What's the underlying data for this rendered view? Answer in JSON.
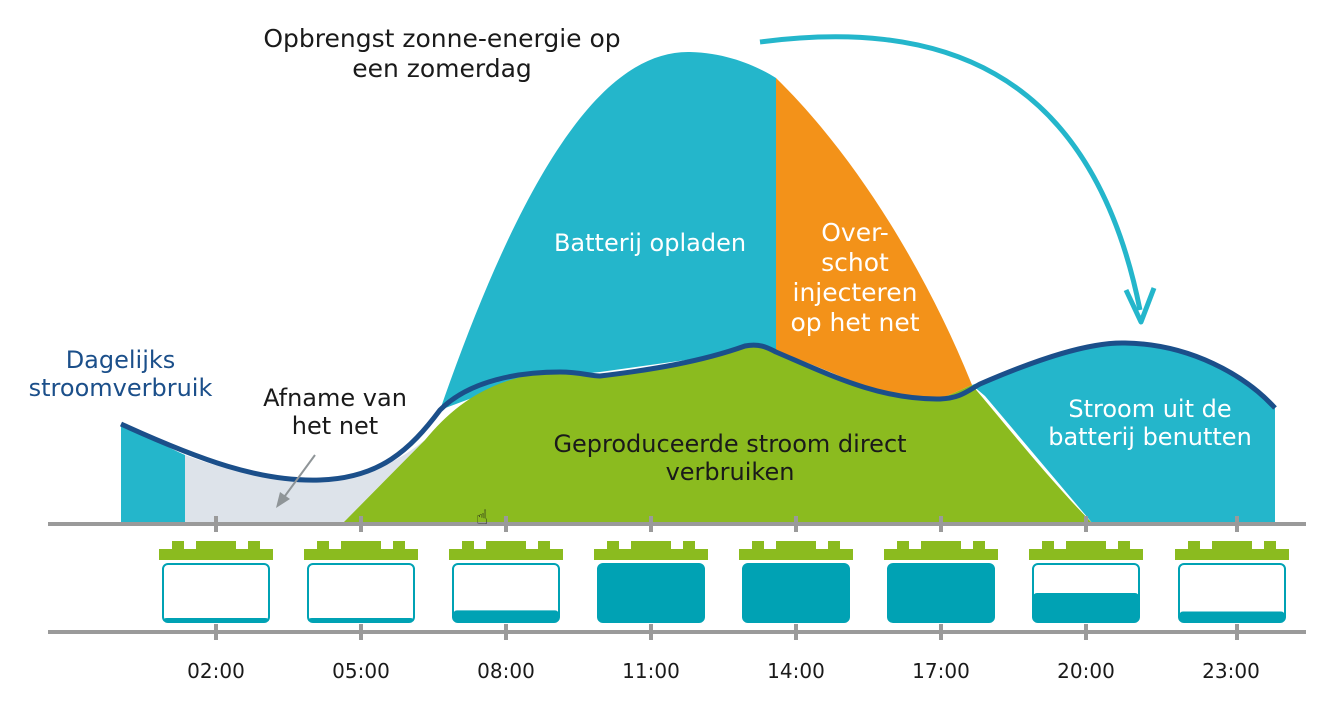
{
  "title": "Opbrengst zonne-energie op een zomerdag",
  "labels": {
    "daily_usage": "Dagelijks stroomverbruik",
    "grid_draw": "Afname van het net",
    "charge_battery": "Batterij opladen",
    "surplus": "Over- schot injecteren op het net",
    "direct_use": "Geproduceerde stroom direct verbruiken",
    "battery_use": "Stroom uit de batterij benutten"
  },
  "times": [
    "02:00",
    "05:00",
    "08:00",
    "11:00",
    "14:00",
    "17:00",
    "20:00",
    "23:00"
  ],
  "battery_levels": [
    0.05,
    0.05,
    0.2,
    1.0,
    1.0,
    1.0,
    0.5,
    0.18
  ],
  "colors": {
    "solar": "#24b6cb",
    "surplus": "#f39219",
    "direct": "#8bbb1f",
    "grid": "#dde3ea",
    "usage_line": "#1b4f8a",
    "axis": "#9a9a9a",
    "battery_fill": "#00a2b4",
    "battery_top": "#8bbb1f",
    "arrow": "#24b6cb"
  }
}
